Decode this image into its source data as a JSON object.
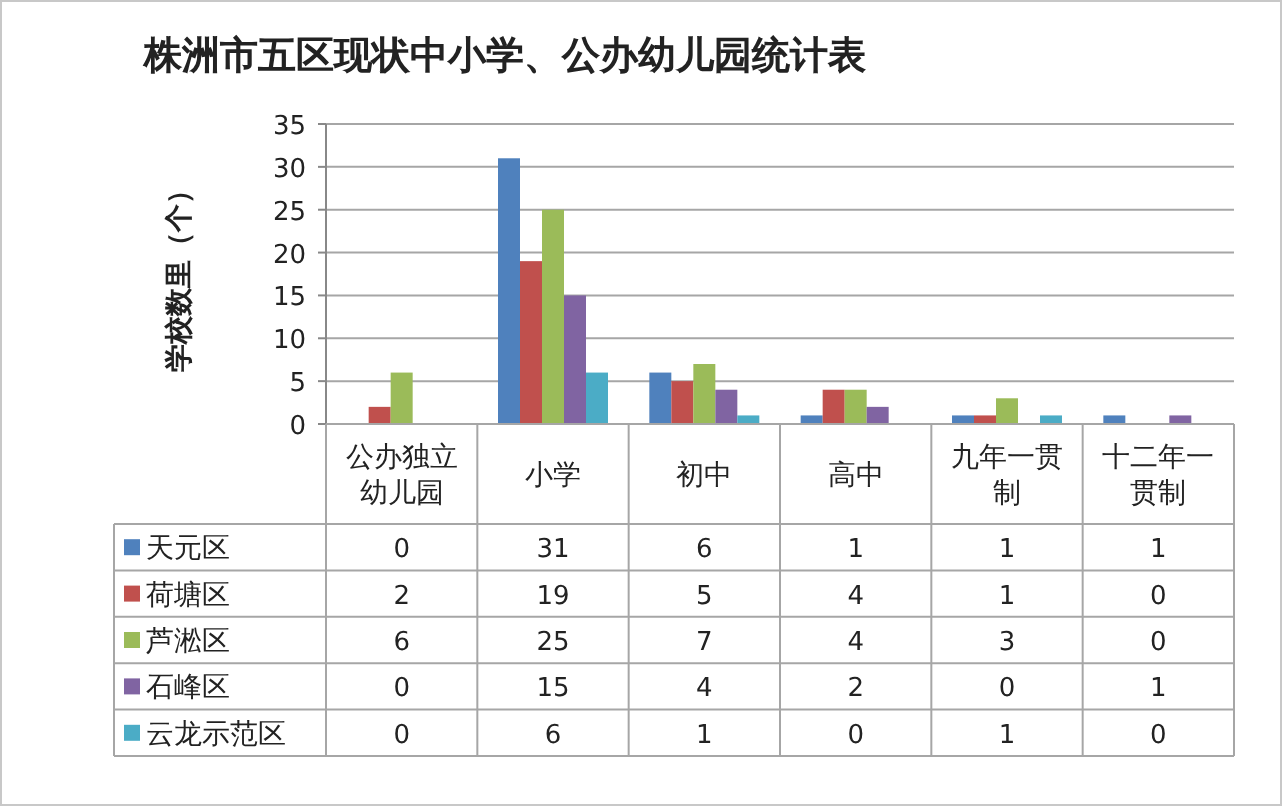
{
  "chart_data": {
    "type": "bar",
    "title": "株洲市五区现状中小学、公办幼儿园统计表",
    "ylabel": "学校数里（个）",
    "categories": [
      "公办独立幼儿园",
      "小学",
      "初中",
      "高中",
      "九年一贯制",
      "十二年一贯制"
    ],
    "series": [
      {
        "name": "天元区",
        "color": "#4f81bd",
        "values": [
          0,
          31,
          6,
          1,
          1,
          1
        ]
      },
      {
        "name": "荷塘区",
        "color": "#c0504d",
        "values": [
          2,
          19,
          5,
          4,
          1,
          0
        ]
      },
      {
        "name": "芦淞区",
        "color": "#9bbb59",
        "values": [
          6,
          25,
          7,
          4,
          3,
          0
        ]
      },
      {
        "name": "石峰区",
        "color": "#8064a2",
        "values": [
          0,
          15,
          4,
          2,
          0,
          1
        ]
      },
      {
        "name": "云龙示范区",
        "color": "#4bacc6",
        "values": [
          0,
          6,
          1,
          0,
          1,
          0
        ]
      }
    ],
    "ylim": [
      0,
      35
    ],
    "yticks": [
      0,
      5,
      10,
      15,
      20,
      25,
      30,
      35
    ],
    "grid": "y",
    "legend": "bottom",
    "data_labels": true
  }
}
